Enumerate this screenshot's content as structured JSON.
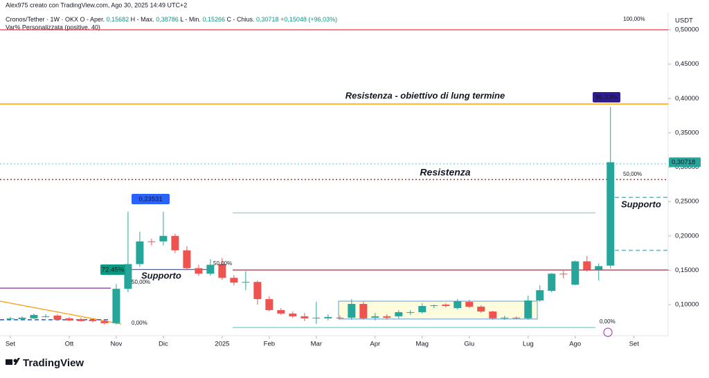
{
  "chart_data": {
    "type": "candlestick",
    "credit": "Alex975 creato con TradingView.com, Ago 30, 2025 14:49 UTC+2",
    "symbol": "Cronos/Tether · 1W · OKX",
    "ohlc_header": [
      {
        "label": "O - Aper.",
        "value": "0,15682"
      },
      {
        "label": "H - Max.",
        "value": "0,38786"
      },
      {
        "label": "L - Min.",
        "value": "0,15266"
      },
      {
        "label": "C - Chius.",
        "value": "0,30718"
      }
    ],
    "change": "+0,15048 (+96,03%)",
    "indicator": "Var% Personalizzata (positive, 40)",
    "currency": "USDT",
    "brand": "TradingView",
    "up_color": "#26a69a",
    "down_color": "#ef5350",
    "candles": [
      {
        "open": 0.079,
        "high": 0.082,
        "low": 0.077,
        "close": 0.08
      },
      {
        "open": 0.079,
        "high": 0.083,
        "low": 0.078,
        "close": 0.081
      },
      {
        "open": 0.08,
        "high": 0.087,
        "low": 0.079,
        "close": 0.085
      },
      {
        "open": 0.083,
        "high": 0.086,
        "low": 0.081,
        "close": 0.083
      },
      {
        "open": 0.084,
        "high": 0.086,
        "low": 0.077,
        "close": 0.078
      },
      {
        "open": 0.08,
        "high": 0.082,
        "low": 0.076,
        "close": 0.077
      },
      {
        "open": 0.079,
        "high": 0.081,
        "low": 0.075,
        "close": 0.076
      },
      {
        "open": 0.078,
        "high": 0.08,
        "low": 0.074,
        "close": 0.076
      },
      {
        "open": 0.076,
        "high": 0.078,
        "low": 0.071,
        "close": 0.073
      },
      {
        "open": 0.073,
        "high": 0.13,
        "low": 0.071,
        "close": 0.123
      },
      {
        "open": 0.123,
        "high": 0.23531,
        "low": 0.118,
        "close": 0.159
      },
      {
        "open": 0.159,
        "high": 0.206,
        "low": 0.155,
        "close": 0.192
      },
      {
        "open": 0.192,
        "high": 0.196,
        "low": 0.186,
        "close": 0.191
      },
      {
        "open": 0.192,
        "high": 0.235,
        "low": 0.186,
        "close": 0.2
      },
      {
        "open": 0.2,
        "high": 0.203,
        "low": 0.175,
        "close": 0.179
      },
      {
        "open": 0.179,
        "high": 0.185,
        "low": 0.15,
        "close": 0.153
      },
      {
        "open": 0.153,
        "high": 0.158,
        "low": 0.142,
        "close": 0.145
      },
      {
        "open": 0.145,
        "high": 0.166,
        "low": 0.142,
        "close": 0.158
      },
      {
        "open": 0.159,
        "high": 0.168,
        "low": 0.136,
        "close": 0.139
      },
      {
        "open": 0.139,
        "high": 0.143,
        "low": 0.128,
        "close": 0.132
      },
      {
        "open": 0.132,
        "high": 0.149,
        "low": 0.121,
        "close": 0.133
      },
      {
        "open": 0.133,
        "high": 0.135,
        "low": 0.1,
        "close": 0.108
      },
      {
        "open": 0.108,
        "high": 0.112,
        "low": 0.09,
        "close": 0.092
      },
      {
        "open": 0.092,
        "high": 0.095,
        "low": 0.085,
        "close": 0.087
      },
      {
        "open": 0.087,
        "high": 0.09,
        "low": 0.081,
        "close": 0.083
      },
      {
        "open": 0.083,
        "high": 0.088,
        "low": 0.076,
        "close": 0.08
      },
      {
        "open": 0.08,
        "high": 0.104,
        "low": 0.072,
        "close": 0.081
      },
      {
        "open": 0.08,
        "high": 0.086,
        "low": 0.077,
        "close": 0.082
      },
      {
        "open": 0.081,
        "high": 0.084,
        "low": 0.079,
        "close": 0.08
      },
      {
        "open": 0.081,
        "high": 0.108,
        "low": 0.078,
        "close": 0.101
      },
      {
        "open": 0.101,
        "high": 0.104,
        "low": 0.078,
        "close": 0.08
      },
      {
        "open": 0.081,
        "high": 0.088,
        "low": 0.077,
        "close": 0.083
      },
      {
        "open": 0.083,
        "high": 0.086,
        "low": 0.078,
        "close": 0.081
      },
      {
        "open": 0.083,
        "high": 0.092,
        "low": 0.08,
        "close": 0.089
      },
      {
        "open": 0.088,
        "high": 0.092,
        "low": 0.085,
        "close": 0.089
      },
      {
        "open": 0.089,
        "high": 0.102,
        "low": 0.087,
        "close": 0.098
      },
      {
        "open": 0.098,
        "high": 0.1,
        "low": 0.095,
        "close": 0.099
      },
      {
        "open": 0.1,
        "high": 0.102,
        "low": 0.096,
        "close": 0.098
      },
      {
        "open": 0.095,
        "high": 0.108,
        "low": 0.093,
        "close": 0.105
      },
      {
        "open": 0.104,
        "high": 0.107,
        "low": 0.095,
        "close": 0.097
      },
      {
        "open": 0.097,
        "high": 0.099,
        "low": 0.088,
        "close": 0.09
      },
      {
        "open": 0.09,
        "high": 0.091,
        "low": 0.078,
        "close": 0.08
      },
      {
        "open": 0.08,
        "high": 0.084,
        "low": 0.078,
        "close": 0.081
      },
      {
        "open": 0.081,
        "high": 0.083,
        "low": 0.079,
        "close": 0.08
      },
      {
        "open": 0.08,
        "high": 0.113,
        "low": 0.078,
        "close": 0.106
      },
      {
        "open": 0.106,
        "high": 0.128,
        "low": 0.104,
        "close": 0.121
      },
      {
        "open": 0.12,
        "high": 0.146,
        "low": 0.118,
        "close": 0.145
      },
      {
        "open": 0.145,
        "high": 0.149,
        "low": 0.138,
        "close": 0.144
      },
      {
        "open": 0.129,
        "high": 0.164,
        "low": 0.128,
        "close": 0.163
      },
      {
        "open": 0.163,
        "high": 0.171,
        "low": 0.148,
        "close": 0.151
      },
      {
        "open": 0.151,
        "high": 0.16,
        "low": 0.135,
        "close": 0.156
      },
      {
        "open": 0.15682,
        "high": 0.38786,
        "low": 0.15266,
        "close": 0.30718
      }
    ],
    "last_price_label": "0,30718",
    "xlim": [
      -0.88,
      55.9
    ],
    "xticks": [
      {
        "value": 0,
        "label": "Set"
      },
      {
        "value": 5,
        "label": "Ott"
      },
      {
        "value": 9,
        "label": "Nov"
      },
      {
        "value": 13,
        "label": "Dic"
      },
      {
        "value": 18,
        "label": "2025"
      },
      {
        "value": 22,
        "label": "Feb"
      },
      {
        "value": 26,
        "label": "Mar"
      },
      {
        "value": 31,
        "label": "Apr"
      },
      {
        "value": 35,
        "label": "Mag"
      },
      {
        "value": 39,
        "label": "Giu"
      },
      {
        "value": 44,
        "label": "Lug"
      },
      {
        "value": 48,
        "label": "Ago"
      },
      {
        "value": 53,
        "label": "Set"
      }
    ],
    "ylim": [
      0.0597,
      0.5232
    ],
    "yticks": [
      {
        "value": 0.1,
        "label": "0,10000"
      },
      {
        "value": 0.15,
        "label": "0,15000"
      },
      {
        "value": 0.2,
        "label": "0,20000"
      },
      {
        "value": 0.25,
        "label": "0,25000"
      },
      {
        "value": 0.3,
        "label": "0,30000"
      },
      {
        "value": 0.35,
        "label": "0,35000"
      },
      {
        "value": 0.4,
        "label": "0,40000"
      },
      {
        "value": 0.45,
        "label": "0,45000"
      },
      {
        "value": 0.5,
        "label": "0,50000"
      }
    ],
    "levels": [
      {
        "value": 0.5,
        "color": "#f23645",
        "style": "solid"
      },
      {
        "value": 0.392,
        "color": "#ff9800",
        "style": "solid"
      },
      {
        "value": 0.282,
        "color": "#c2262e",
        "style": "dotted"
      },
      {
        "value": 0.305,
        "color": "#9ad8e0",
        "style": "dotted"
      },
      {
        "value": 0.1504,
        "color": "#b22833",
        "style": "solid"
      },
      {
        "value": 0.2335,
        "color": "#7fd3e0",
        "style": "solid"
      },
      {
        "value": 0.0667,
        "color": "#7fd3e0",
        "style": "solid"
      },
      {
        "value": 0.124,
        "color": "#8e44ad",
        "style": "solid"
      },
      {
        "value": 0.151,
        "color": "#2962ff",
        "style": "solid"
      },
      {
        "value": 0.078,
        "color": "#2962ff",
        "style": "dashed"
      },
      {
        "value": 0.256,
        "color": "#4fc3d9",
        "style": "dashed"
      },
      {
        "value": 0.179,
        "color": "#4fc3d9",
        "style": "dashed"
      }
    ],
    "range_box": {
      "top": 0.105,
      "bottom": 0.079
    },
    "annotations": [
      "Resistenza - obiettivo di lung termine",
      "Resistenza",
      "Supporto",
      "Supporto",
      "100,00%",
      "50,00%",
      "0,00%",
      "50,00%",
      "0,00%",
      "50,00%"
    ],
    "tags": [
      "0,23531",
      "72.45%",
      "96.03%"
    ]
  }
}
